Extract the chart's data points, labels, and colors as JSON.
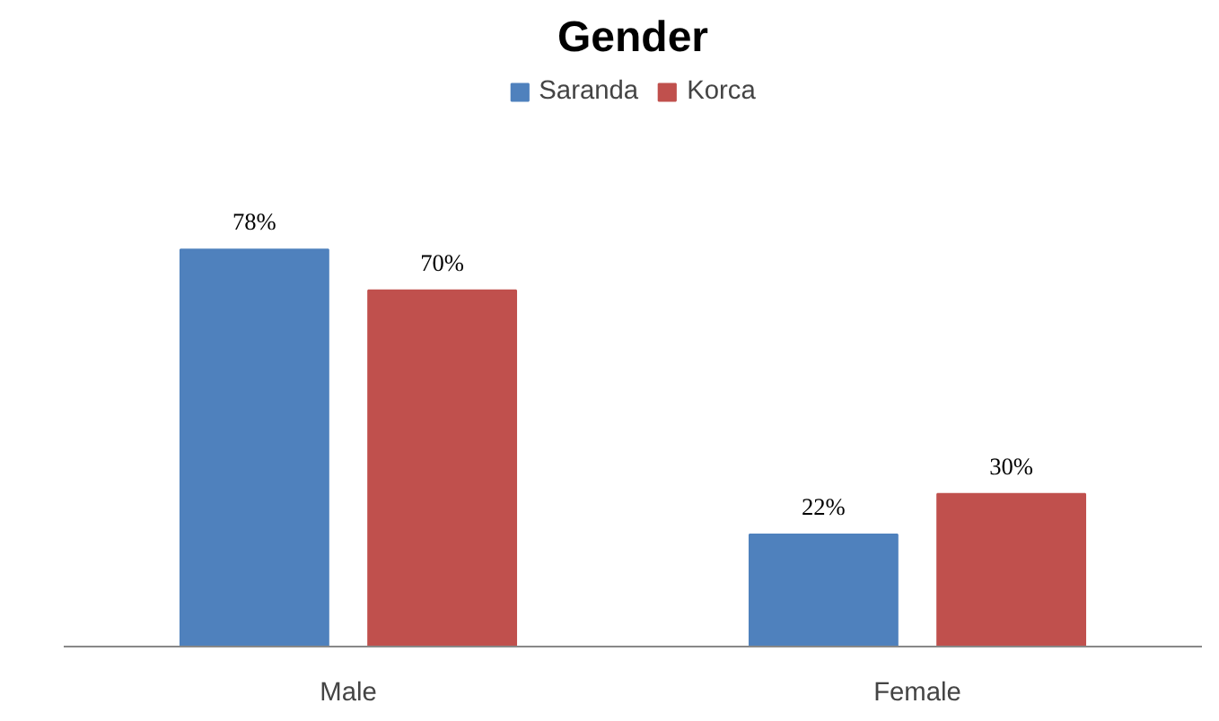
{
  "chart_data": {
    "type": "bar",
    "title": "Gender",
    "categories": [
      "Male",
      "Female"
    ],
    "series": [
      {
        "name": "Saranda",
        "color": "#4f81bd",
        "values": [
          78,
          22
        ],
        "value_labels": [
          "78%",
          "22%"
        ]
      },
      {
        "name": "Korca",
        "color": "#c0504d",
        "values": [
          70,
          30
        ],
        "value_labels": [
          "70%",
          "30%"
        ]
      }
    ],
    "legend": "top"
  }
}
